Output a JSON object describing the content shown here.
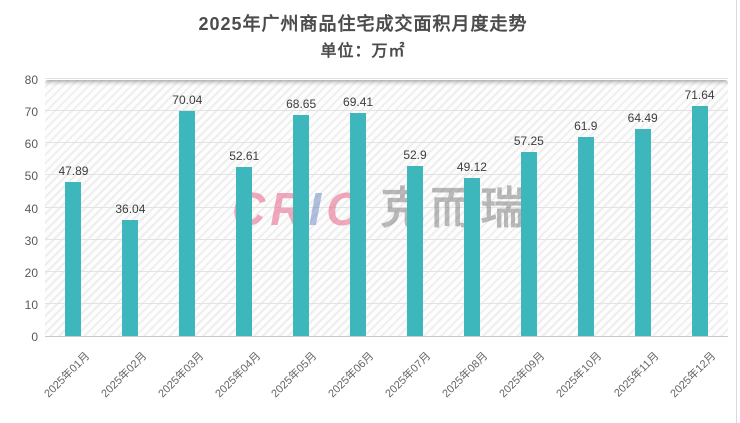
{
  "header": {
    "title": "2025年广州商品住宅成交面积月度走势",
    "subtitle": "单位：万㎡"
  },
  "watermark": {
    "logo": "CRIC",
    "logo_pink": "#e66487",
    "logo_blue": "#6482be",
    "text": "克而瑞"
  },
  "chart_data": {
    "type": "bar",
    "title": "2025年广州商品住宅成交面积月度走势",
    "subtitle": "单位：万㎡",
    "categories": [
      "2025年01月",
      "2025年02月",
      "2025年03月",
      "2025年04月",
      "2025年05月",
      "2025年06月",
      "2025年07月",
      "2025年08月",
      "2025年09月",
      "2025年10月",
      "2025年11月",
      "2025年12月"
    ],
    "values": [
      47.89,
      36.04,
      70.04,
      52.61,
      68.65,
      69.41,
      52.9,
      49.12,
      57.25,
      61.9,
      64.49,
      71.64
    ],
    "value_labels": [
      "47.89",
      "36.04",
      "70.04",
      "52.61",
      "68.65",
      "69.41",
      "52.9",
      "49.12",
      "57.25",
      "61.9",
      "64.49",
      "71.64"
    ],
    "xlabel": "",
    "ylabel": "",
    "ylim": [
      0,
      80
    ],
    "y_ticks": [
      0,
      10,
      20,
      30,
      40,
      50,
      60,
      70,
      80
    ],
    "grid": true,
    "legend_position": "none",
    "bar_color": "#3db6bc"
  }
}
